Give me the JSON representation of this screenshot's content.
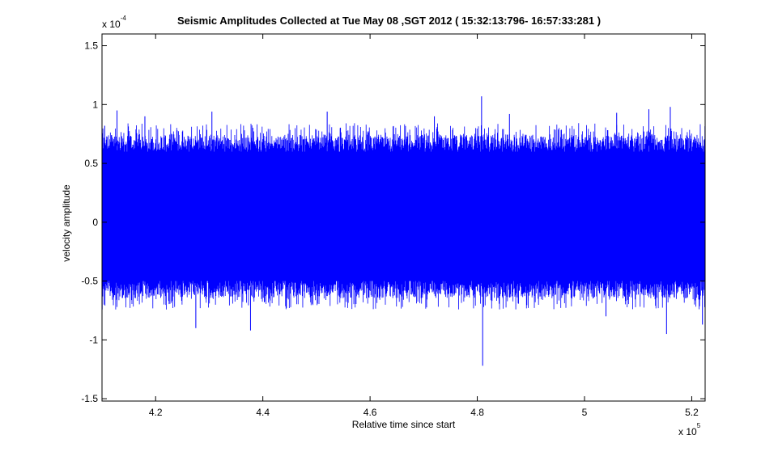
{
  "title": "Seismic Amplitudes Collected at Tue May 08 ,SGT 2012 (  15:32:13:796- 16:57:33:281 )",
  "chart_data": {
    "type": "line",
    "title": "Seismic Amplitudes Collected at Tue May 08 ,SGT 2012 (  15:32:13:796- 16:57:33:281 )",
    "xlabel": "Relative time since start",
    "ylabel": "velocity amplitude",
    "x_multiplier": {
      "base": "x 10",
      "exponent": "5"
    },
    "y_multiplier": {
      "base": "x 10",
      "exponent": "-4"
    },
    "xlim": [
      4.1,
      5.225
    ],
    "ylim": [
      -1.52,
      1.6
    ],
    "x_ticks": [
      4.2,
      4.4,
      4.6,
      4.8,
      5,
      5.2
    ],
    "x_tick_labels": [
      "4.2",
      "4.4",
      "4.6",
      "4.8",
      "5",
      "5.2"
    ],
    "y_ticks": [
      -1.5,
      -1,
      -0.5,
      0,
      0.5,
      1,
      1.5
    ],
    "y_tick_labels": [
      "-1.5",
      "-1",
      "-0.5",
      "0",
      "0.5",
      "1",
      "1.5"
    ],
    "grid": false,
    "series": [
      {
        "color": "#0000ff",
        "envelope_upper": 0.65,
        "envelope_lower": -0.55,
        "spikes": [
          {
            "x": 4.105,
            "y": 0.82
          },
          {
            "x": 4.128,
            "y": 0.95
          },
          {
            "x": 4.18,
            "y": 0.9
          },
          {
            "x": 4.275,
            "y": -0.9
          },
          {
            "x": 4.305,
            "y": 0.94
          },
          {
            "x": 4.377,
            "y": -0.92
          },
          {
            "x": 4.5,
            "y": -0.55
          },
          {
            "x": 4.52,
            "y": 0.94
          },
          {
            "x": 4.72,
            "y": 0.9
          },
          {
            "x": 4.808,
            "y": 1.07
          },
          {
            "x": 4.81,
            "y": -1.22
          },
          {
            "x": 4.86,
            "y": 0.92
          },
          {
            "x": 5.04,
            "y": -0.8
          },
          {
            "x": 5.06,
            "y": 0.93
          },
          {
            "x": 5.12,
            "y": 0.96
          },
          {
            "x": 5.16,
            "y": 0.98
          },
          {
            "x": 5.153,
            "y": -0.95
          },
          {
            "x": 5.22,
            "y": -0.87
          }
        ]
      }
    ]
  }
}
